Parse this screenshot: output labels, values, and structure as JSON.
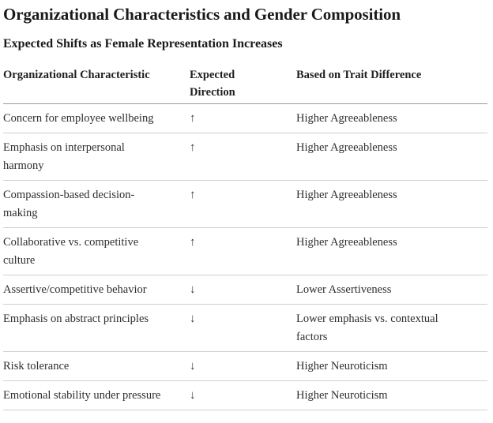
{
  "page": {
    "title": "Organizational Characteristics and Gender Composition",
    "subtitle": "Expected Shifts as Female Representation Increases"
  },
  "table": {
    "columns": [
      "Organizational Characteristic",
      "Expected Direction",
      "Based on Trait Difference"
    ],
    "rows": [
      {
        "characteristic": "Concern for employee wellbeing",
        "direction": "↑",
        "basis": "Higher Agreeableness"
      },
      {
        "characteristic": "Emphasis on interpersonal harmony",
        "direction": "↑",
        "basis": "Higher Agreeableness"
      },
      {
        "characteristic": "Compassion-based decision-making",
        "direction": "↑",
        "basis": "Higher Agreeableness"
      },
      {
        "characteristic": "Collaborative vs. competitive culture",
        "direction": "↑",
        "basis": "Higher Agreeableness"
      },
      {
        "characteristic": "Assertive/competitive behavior",
        "direction": "↓",
        "basis": "Lower Assertiveness"
      },
      {
        "characteristic": "Emphasis on abstract principles",
        "direction": "↓",
        "basis": "Lower emphasis vs. contextual factors"
      },
      {
        "characteristic": "Risk tolerance",
        "direction": "↓",
        "basis": "Higher Neuroticism"
      },
      {
        "characteristic": "Emotional stability under pressure",
        "direction": "↓",
        "basis": "Higher Neuroticism"
      }
    ]
  },
  "colors": {
    "title_text": "#1a1a1a",
    "body_text": "#2e2e2e",
    "header_rule": "#9b9b9b",
    "row_rule": "#d0d0d0",
    "background": "#ffffff"
  }
}
